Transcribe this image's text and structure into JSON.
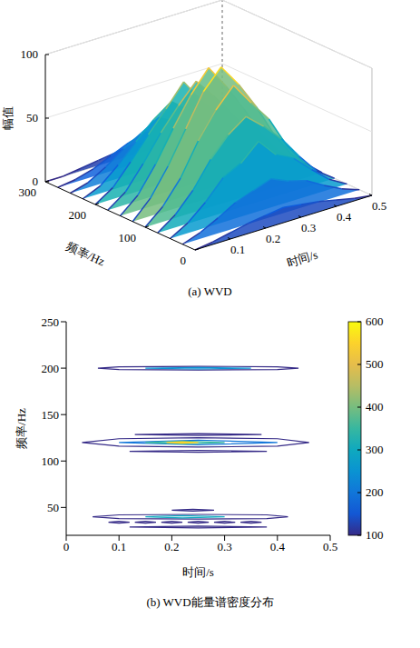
{
  "chart_data": [
    {
      "type": "surface3d",
      "caption": "(a) WVD",
      "xlabel": "时间/s",
      "ylabel": "频率/Hz",
      "zlabel": "幅值",
      "xlim": [
        0,
        0.5
      ],
      "xticks": [
        0.1,
        0.2,
        0.3,
        0.4,
        0.5
      ],
      "ylim": [
        0,
        300
      ],
      "yticks": [
        0,
        100,
        200,
        300
      ],
      "zlim": [
        0,
        100
      ],
      "zticks": [
        0,
        50,
        100
      ],
      "x": [
        0,
        0.05,
        0.1,
        0.15,
        0.2,
        0.25,
        0.3,
        0.35,
        0.4,
        0.45,
        0.5
      ],
      "y": [
        0,
        25,
        50,
        75,
        100,
        125,
        150,
        175,
        200,
        225,
        250,
        275,
        300
      ],
      "z": [
        [
          0,
          2,
          5,
          8,
          10,
          12,
          10,
          8,
          5,
          2,
          0
        ],
        [
          0,
          5,
          12,
          20,
          25,
          30,
          24,
          20,
          12,
          5,
          0
        ],
        [
          0,
          8,
          20,
          35,
          42,
          55,
          40,
          33,
          20,
          8,
          0
        ],
        [
          0,
          10,
          25,
          45,
          60,
          70,
          58,
          44,
          26,
          10,
          0
        ],
        [
          0,
          12,
          30,
          55,
          75,
          90,
          72,
          55,
          30,
          12,
          0
        ],
        [
          0,
          14,
          35,
          60,
          85,
          100,
          82,
          60,
          34,
          14,
          0
        ],
        [
          0,
          12,
          32,
          56,
          78,
          95,
          76,
          54,
          30,
          12,
          0
        ],
        [
          0,
          10,
          28,
          48,
          65,
          80,
          64,
          46,
          26,
          10,
          0
        ],
        [
          0,
          9,
          25,
          42,
          58,
          75,
          56,
          40,
          24,
          9,
          0
        ],
        [
          0,
          6,
          18,
          32,
          45,
          55,
          44,
          30,
          18,
          6,
          0
        ],
        [
          0,
          4,
          12,
          22,
          30,
          38,
          30,
          22,
          12,
          4,
          0
        ],
        [
          0,
          2,
          6,
          12,
          18,
          22,
          18,
          12,
          6,
          2,
          0
        ],
        [
          0,
          0,
          2,
          4,
          6,
          8,
          6,
          4,
          2,
          0,
          0
        ]
      ]
    },
    {
      "type": "contour",
      "caption": "(b) WVD能量谱密度分布",
      "xlabel": "时间/s",
      "ylabel": "频率/Hz",
      "xlim": [
        0,
        0.5
      ],
      "xticks": [
        0,
        0.1,
        0.2,
        0.3,
        0.4,
        0.5
      ],
      "ylim": [
        20,
        250
      ],
      "yticks": [
        50,
        100,
        150,
        200,
        250
      ],
      "colorbar_lim": [
        100,
        600
      ],
      "colorbar_ticks": [
        100,
        200,
        300,
        400,
        500,
        600
      ],
      "contours": [
        {
          "level": 100,
          "points": [
            [
              0.06,
              200
            ],
            [
              0.1,
              201.5
            ],
            [
              0.25,
              202
            ],
            [
              0.4,
              201.5
            ],
            [
              0.44,
              200
            ],
            [
              0.4,
              198.5
            ],
            [
              0.25,
              198
            ],
            [
              0.1,
              198.5
            ],
            [
              0.06,
              200
            ]
          ]
        },
        {
          "level": 250,
          "points": [
            [
              0.15,
              200
            ],
            [
              0.25,
              200.8
            ],
            [
              0.35,
              200
            ],
            [
              0.25,
              199.2
            ],
            [
              0.15,
              200
            ]
          ]
        },
        {
          "level": 100,
          "points": [
            [
              0.03,
              120
            ],
            [
              0.1,
              124
            ],
            [
              0.25,
              125
            ],
            [
              0.4,
              124
            ],
            [
              0.46,
              120
            ],
            [
              0.4,
              116
            ],
            [
              0.25,
              115
            ],
            [
              0.1,
              116
            ],
            [
              0.03,
              120
            ]
          ]
        },
        {
          "level": 200,
          "points": [
            [
              0.1,
              120
            ],
            [
              0.25,
              122.5
            ],
            [
              0.4,
              120
            ],
            [
              0.25,
              117.5
            ],
            [
              0.1,
              120
            ]
          ]
        },
        {
          "level": 350,
          "points": [
            [
              0.15,
              120
            ],
            [
              0.22,
              121.5
            ],
            [
              0.3,
              120
            ],
            [
              0.22,
              118.5
            ],
            [
              0.15,
              120
            ]
          ]
        },
        {
          "level": 550,
          "points": [
            [
              0.19,
              120
            ],
            [
              0.22,
              120.7
            ],
            [
              0.25,
              120
            ],
            [
              0.22,
              119.3
            ],
            [
              0.19,
              120
            ]
          ]
        },
        {
          "level": 100,
          "points": [
            [
              0.12,
              110.5
            ],
            [
              0.25,
              111.5
            ],
            [
              0.38,
              110.5
            ],
            [
              0.25,
              109.5
            ],
            [
              0.12,
              110.5
            ]
          ]
        },
        {
          "level": 100,
          "points": [
            [
              0.13,
              128.5
            ],
            [
              0.25,
              129.5
            ],
            [
              0.37,
              128.5
            ],
            [
              0.25,
              127.5
            ],
            [
              0.13,
              128.5
            ]
          ]
        },
        {
          "level": 100,
          "points": [
            [
              0.05,
              40
            ],
            [
              0.1,
              42
            ],
            [
              0.25,
              42.5
            ],
            [
              0.38,
              42
            ],
            [
              0.42,
              40
            ],
            [
              0.38,
              38
            ],
            [
              0.25,
              37.5
            ],
            [
              0.1,
              38
            ],
            [
              0.05,
              40
            ]
          ]
        },
        {
          "level": 300,
          "points": [
            [
              0.15,
              40
            ],
            [
              0.22,
              41.2
            ],
            [
              0.3,
              40
            ],
            [
              0.22,
              38.8
            ],
            [
              0.15,
              40
            ]
          ]
        },
        {
          "level": 100,
          "points": [
            [
              0.08,
              34
            ],
            [
              0.1,
              35
            ],
            [
              0.12,
              34
            ],
            [
              0.1,
              33
            ],
            [
              0.08,
              34
            ]
          ]
        },
        {
          "level": 100,
          "points": [
            [
              0.13,
              34
            ],
            [
              0.15,
              35
            ],
            [
              0.17,
              34
            ],
            [
              0.15,
              33
            ],
            [
              0.13,
              34
            ]
          ]
        },
        {
          "level": 100,
          "points": [
            [
              0.18,
              34
            ],
            [
              0.2,
              35
            ],
            [
              0.22,
              34
            ],
            [
              0.2,
              33
            ],
            [
              0.18,
              34
            ]
          ]
        },
        {
          "level": 100,
          "points": [
            [
              0.23,
              34
            ],
            [
              0.25,
              35
            ],
            [
              0.27,
              34
            ],
            [
              0.25,
              33
            ],
            [
              0.23,
              34
            ]
          ]
        },
        {
          "level": 100,
          "points": [
            [
              0.28,
              34
            ],
            [
              0.3,
              35
            ],
            [
              0.32,
              34
            ],
            [
              0.3,
              33
            ],
            [
              0.28,
              34
            ]
          ]
        },
        {
          "level": 100,
          "points": [
            [
              0.33,
              34
            ],
            [
              0.35,
              35
            ],
            [
              0.37,
              34
            ],
            [
              0.35,
              33
            ],
            [
              0.33,
              34
            ]
          ]
        },
        {
          "level": 100,
          "points": [
            [
              0.2,
              47
            ],
            [
              0.24,
              48
            ],
            [
              0.28,
              47
            ],
            [
              0.24,
              46
            ],
            [
              0.2,
              47
            ]
          ]
        },
        {
          "level": 100,
          "points": [
            [
              0.12,
              29
            ],
            [
              0.25,
              30
            ],
            [
              0.38,
              29
            ],
            [
              0.25,
              28
            ],
            [
              0.12,
              29
            ]
          ]
        }
      ]
    }
  ]
}
